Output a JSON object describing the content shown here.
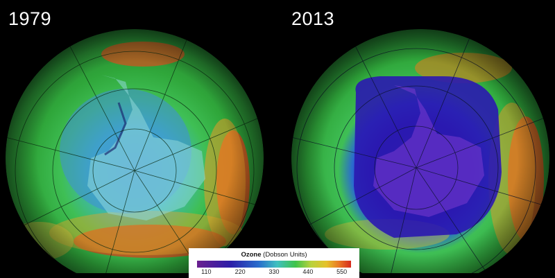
{
  "panels": [
    {
      "year": "1979"
    },
    {
      "year": "2013"
    }
  ],
  "legend": {
    "title_bold": "Ozone",
    "title_rest": "(Dobson Units)",
    "ticks": [
      "110",
      "220",
      "330",
      "440",
      "550"
    ],
    "color_stops": [
      "#6b1f8f",
      "#2b1ea8",
      "#2a6dcc",
      "#3fc0c0",
      "#3fc34a",
      "#b9d23c",
      "#e5c22a",
      "#e97a24",
      "#d62a1e"
    ]
  }
}
